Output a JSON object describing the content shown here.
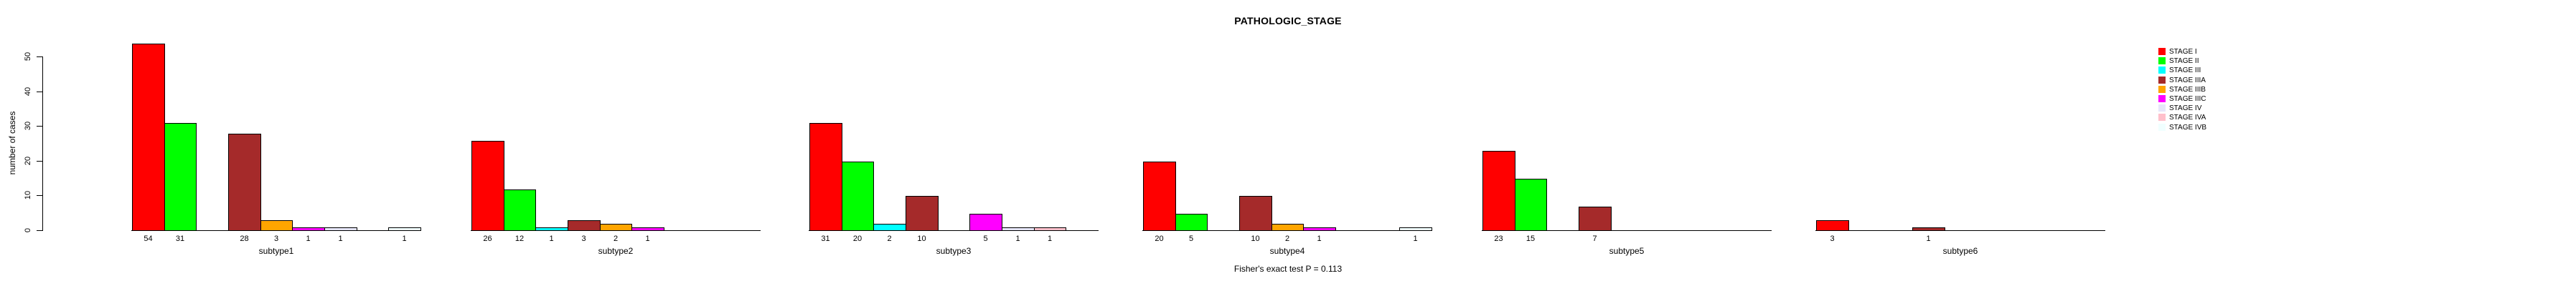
{
  "title": "PATHOLOGIC_STAGE",
  "subtitle": "Fisher's exact test P = 0.113",
  "y_axis": {
    "label": "number of cases",
    "ticks": [
      "0",
      "10",
      "20",
      "30",
      "40",
      "50"
    ]
  },
  "chart_data": {
    "type": "bar",
    "title": "PATHOLOGIC_STAGE",
    "xlabel": "",
    "ylabel": "number of cases",
    "ylim": [
      0,
      55
    ],
    "y_ticks": [
      0,
      10,
      20,
      30,
      40,
      50
    ],
    "grid": false,
    "legend_position": "right",
    "annotation": "Fisher's exact test P = 0.113",
    "value_labels": "count shown under each non-zero bar",
    "categories": [
      "subtype1",
      "subtype2",
      "subtype3",
      "subtype4",
      "subtype5",
      "subtype6"
    ],
    "series": [
      {
        "name": "STAGE I",
        "color": "#FF0000",
        "values": [
          54,
          26,
          31,
          20,
          23,
          3
        ]
      },
      {
        "name": "STAGE II",
        "color": "#00FF00",
        "values": [
          31,
          12,
          20,
          5,
          15,
          0
        ]
      },
      {
        "name": "STAGE III",
        "color": "#00FFFF",
        "values": [
          0,
          1,
          2,
          0,
          0,
          0
        ]
      },
      {
        "name": "STAGE IIIA",
        "color": "#A52A2A",
        "values": [
          28,
          3,
          10,
          10,
          7,
          1
        ]
      },
      {
        "name": "STAGE IIIB",
        "color": "#FFA500",
        "values": [
          3,
          2,
          0,
          2,
          0,
          0
        ]
      },
      {
        "name": "STAGE IIIC",
        "color": "#FF00FF",
        "values": [
          1,
          1,
          5,
          1,
          0,
          0
        ]
      },
      {
        "name": "STAGE IV",
        "color": "#E6E6FA",
        "values": [
          1,
          0,
          1,
          0,
          0,
          0
        ]
      },
      {
        "name": "STAGE IVA",
        "color": "#FFC0CB",
        "values": [
          0,
          0,
          1,
          0,
          0,
          0
        ]
      },
      {
        "name": "STAGE IVB",
        "color": "#F0FFFF",
        "values": [
          1,
          0,
          0,
          1,
          0,
          0
        ]
      }
    ]
  }
}
